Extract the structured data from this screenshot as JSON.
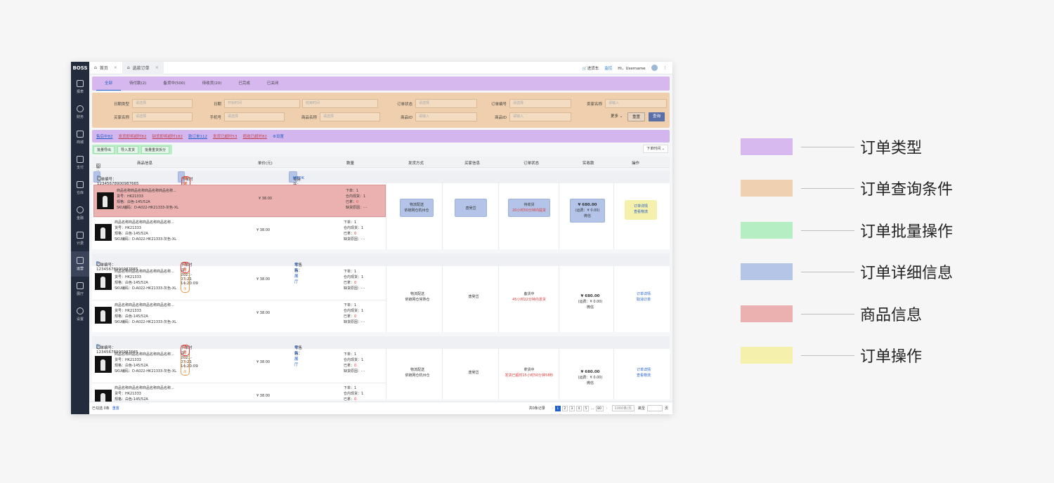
{
  "app": {
    "logo": "BOSS"
  },
  "sidebar": {
    "items": [
      {
        "label": "报表",
        "icon": "chart-icon"
      },
      {
        "label": "财务",
        "icon": "yen-icon"
      },
      {
        "label": "商城",
        "icon": "home-icon"
      },
      {
        "label": "支付",
        "icon": "wallet-icon"
      },
      {
        "label": "仓库",
        "icon": "warehouse-icon"
      },
      {
        "label": "金融",
        "icon": "coin-icon"
      },
      {
        "label": "计费",
        "icon": "bill-icon"
      },
      {
        "label": "运营",
        "icon": "bookmark-icon",
        "active": true
      },
      {
        "label": "展厅",
        "icon": "location-icon"
      },
      {
        "label": "设置",
        "icon": "gear-icon"
      }
    ]
  },
  "topbar": {
    "tabs": [
      {
        "label": "首页"
      },
      {
        "label": "选款订单",
        "active": true
      }
    ],
    "cart": "进货车",
    "monitor": "监控",
    "greeting": "Hi，Username"
  },
  "order_types": [
    "全部",
    "待付款(2)",
    "备货中(500)",
    "待收货(20)",
    "已完成",
    "已关闭"
  ],
  "query": {
    "fields": [
      {
        "label": "日期类型",
        "placeholder": "请选择"
      },
      {
        "label": "日期",
        "placeholder": "开始时间",
        "placeholder2": "结束时间"
      },
      {
        "label": "订单状态",
        "placeholder": "请选择"
      },
      {
        "label": "订单编号",
        "placeholder": "请选择"
      },
      {
        "label": "卖家名称",
        "placeholder": "请输入"
      },
      {
        "label": "买家名称",
        "placeholder": "请选择"
      },
      {
        "label": "手机号",
        "placeholder": "请选择"
      },
      {
        "label": "商品名称",
        "placeholder": "请选择"
      },
      {
        "label": "商品ID",
        "placeholder": "请输入"
      },
      {
        "label": "商品ID",
        "placeholder": "请输入"
      }
    ],
    "more": "更多",
    "reset": "重置",
    "search": "查询"
  },
  "filters": [
    "售后中82",
    "发货即将超时82",
    "缺货即将超时182",
    "款订单112",
    "发货已超时53",
    "揽收已超时82"
  ],
  "filter_settings": "设置",
  "batch": [
    "批量导出",
    "导入发货",
    "批量重货拆分"
  ],
  "sort": "下单时间",
  "table_header": {
    "select_all": "全选",
    "product": "商品信息",
    "price": "单价(元)",
    "qty": "数量",
    "ship": "发货方式",
    "buyer": "买家信息",
    "status": "订单状态",
    "paid": "实收款",
    "ops": "操作"
  },
  "product_text": {
    "name": "商品名称商品名称商品名称商品名称...",
    "code": "货号：HK21333",
    "spec": "规格：白色-145/52A",
    "sku": "SKU编码：D-A022-HK21333-灰色-XL",
    "price": "¥ 38.00",
    "ordered": "下单：1",
    "stock": "仓内现货：1",
    "sent": "已拿：",
    "zero": "0",
    "short": "缺货原因：- -"
  },
  "orders": [
    {
      "no": "订单编号：12345678900987665",
      "time": "下单时间：2021-07-21 14:20:09",
      "pill": "余额不足",
      "pill2": "提起",
      "shop_label": "零售商：",
      "shop": "MTDK",
      "ship1": "物流配送",
      "ship2": "依链网仓杭州仓",
      "buyer": "唐吴岱",
      "status": "待收货",
      "status_note": "20小时50分钟内提货",
      "amount": "¥ 680.00",
      "fee": "(运费：¥ 0.00)",
      "pay": "微信",
      "op1": "订单详情",
      "op2": "查看物流"
    },
    {
      "no": "订单编号：12345678900987665",
      "time": "下单时间：2021-07-21 14:20:09",
      "pill": "先款待发订单",
      "pill2": "提起",
      "shop_label": "零售商：",
      "shop": "零售展厅",
      "ship1": "物流配送",
      "ship2": "依链网仓常熟仓",
      "buyer": "唐吴岱",
      "status": "备货中",
      "status_note": "45小时22分钟内发货",
      "amount": "¥ 680.00",
      "fee": "(运费：¥ 0.00)",
      "pay": "微信",
      "op1": "订单详情",
      "op2": "取消订单"
    },
    {
      "no": "订单编号：12345678900987665",
      "time": "下单时间：2021-07-21 14:20:09",
      "pill": "先款待发订单",
      "pill2": "提起",
      "shop_label": "零售商：",
      "shop": "零售展厅",
      "ship1": "物流配送",
      "ship2": "依链网仓杭州仓",
      "buyer": "唐吴岱",
      "status": "拿货中",
      "status_note": "发货已超时15小时50分钟58秒",
      "amount": "¥ 680.00",
      "fee": "(运费：¥ 0.00)",
      "pay": "微信",
      "op1": "订单详情",
      "op2": "查看物流"
    }
  ],
  "footer": {
    "selected": "已勾选 0条",
    "reset": "重置",
    "total": "共0条记录",
    "pages": [
      "1",
      "2",
      "3",
      "4",
      "5",
      "...",
      "80"
    ],
    "per_page": "1000条/页",
    "goto": "跳至",
    "page_unit": "页"
  },
  "legend": [
    {
      "label": "订单类型",
      "color": "#d7b8ef"
    },
    {
      "label": "订单查询条件",
      "color": "#efd0b0"
    },
    {
      "label": "订单批量操作",
      "color": "#b6eec3"
    },
    {
      "label": "订单详细信息",
      "color": "#b5c5e8"
    },
    {
      "label": "商品信息",
      "color": "#ebb1b1"
    },
    {
      "label": "订单操作",
      "color": "#f5f0ab"
    }
  ]
}
